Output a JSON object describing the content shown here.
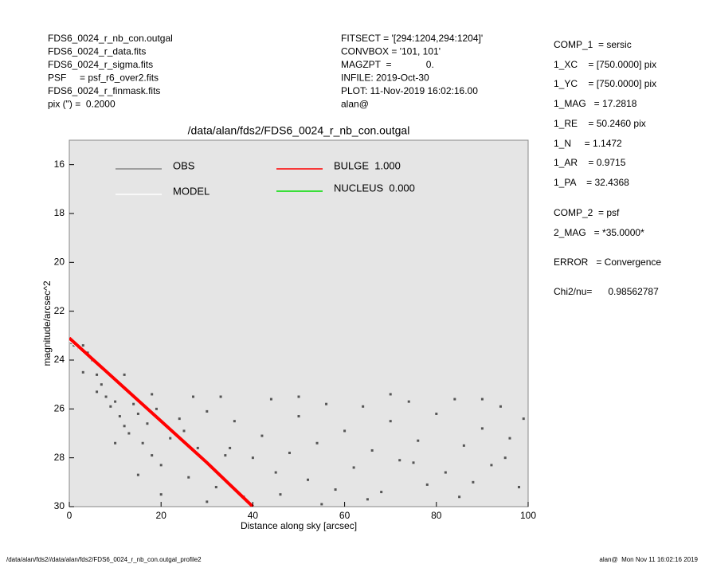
{
  "header_left": [
    "FDS6_0024_r_nb_con.outgal",
    "FDS6_0024_r_data.fits",
    "FDS6_0024_r_sigma.fits",
    "PSF     = psf_r6_over2.fits",
    "FDS6_0024_r_finmask.fits",
    "pix (\") =  0.2000"
  ],
  "header_middle": [
    "FITSECT = '[294:1204,294:1204]'",
    "CONVBOX = '101, 101'",
    "MAGZPT  =             0.",
    "INFILE: 2019-Oct-30",
    "PLOT: 11-Nov-2019 16:02:16.00",
    "alan@"
  ],
  "fit_parameters": [
    "COMP_1  = sersic",
    "1_XC    = [750.0000] pix",
    "1_YC    = [750.0000] pix",
    "1_MAG   = 17.2818",
    "1_RE    = 50.2460 pix",
    "1_N     = 1.1472",
    "1_AR    = 0.9715",
    "1_PA    = 32.4368",
    "COMP_2  = psf",
    "2_MAG   = *35.0000*",
    "ERROR   = Convergence",
    "Chi2/nu=      0.98562787"
  ],
  "footer": {
    "left": "/data/alan/fds2//data/alan/fds2/FDS6_0024_r_nb_con.outgal_profile2",
    "right": "alan@  Mon Nov 11 16:02:16 2019"
  },
  "chart_data": {
    "type": "scatter",
    "title": "/data/alan/fds2/FDS6_0024_r_nb_con.outgal",
    "xlabel": "Distance along sky [arcsec]",
    "ylabel": "magnitude/arcsec^2",
    "xlim": [
      0,
      100
    ],
    "ylim": [
      15,
      30
    ],
    "y_inverted": true,
    "xticks": [
      0,
      20,
      40,
      60,
      80,
      100
    ],
    "yticks": [
      16,
      18,
      20,
      22,
      24,
      26,
      28,
      30
    ],
    "series": [
      {
        "name": "OBS",
        "color": "#555555",
        "kind": "points",
        "x": [
          0.5,
          1,
          2,
          3,
          4,
          5,
          6,
          7,
          8,
          9,
          10,
          11,
          12,
          13,
          14,
          15,
          16,
          17,
          18,
          19,
          20,
          22,
          24,
          26,
          28,
          30,
          32,
          34,
          36,
          38,
          40,
          42,
          44,
          46,
          48,
          50,
          52,
          54,
          56,
          58,
          60,
          62,
          64,
          66,
          68,
          70,
          72,
          74,
          76,
          78,
          80,
          82,
          84,
          86,
          88,
          90,
          92,
          94,
          96,
          98,
          99,
          10,
          15,
          20,
          25,
          30,
          35,
          45,
          55,
          65,
          75,
          85,
          95,
          3,
          6,
          12,
          18,
          27,
          33,
          50,
          70,
          90
        ],
        "values": [
          23.3,
          23.4,
          23.5,
          23.4,
          23.7,
          24.0,
          24.6,
          25.0,
          25.5,
          25.9,
          25.7,
          26.3,
          26.7,
          27.0,
          25.8,
          26.2,
          27.4,
          26.6,
          27.9,
          26.0,
          28.3,
          27.2,
          26.4,
          28.8,
          27.6,
          26.1,
          29.2,
          27.9,
          26.5,
          29.6,
          28.0,
          27.1,
          25.6,
          29.5,
          27.8,
          26.3,
          28.9,
          27.4,
          25.8,
          29.3,
          26.9,
          28.4,
          25.9,
          27.7,
          29.4,
          26.5,
          28.1,
          25.7,
          27.3,
          29.1,
          26.2,
          28.6,
          25.6,
          27.5,
          29.0,
          26.8,
          28.3,
          25.9,
          27.2,
          29.2,
          26.4,
          27.4,
          28.7,
          29.5,
          26.9,
          29.8,
          27.6,
          28.6,
          29.9,
          29.7,
          28.2,
          29.6,
          28.0,
          24.5,
          25.3,
          24.6,
          25.4,
          25.5,
          25.5,
          25.5,
          25.4,
          25.6
        ]
      },
      {
        "name": "MODEL",
        "color": "#ffffff",
        "kind": "line",
        "x": [
          0,
          5,
          10,
          15,
          20,
          25,
          30,
          35,
          40
        ],
        "values": [
          23.2,
          24.0,
          24.85,
          25.7,
          26.55,
          27.4,
          28.25,
          29.1,
          30.0
        ]
      },
      {
        "name": "BULGE  1.000",
        "color": "#ff0000",
        "kind": "line",
        "x": [
          0,
          5,
          10,
          15,
          20,
          25,
          30,
          35,
          40
        ],
        "values": [
          23.1,
          23.95,
          24.8,
          25.65,
          26.5,
          27.35,
          28.2,
          29.1,
          30.0
        ]
      },
      {
        "name": "NUCLEUS  0.000",
        "color": "#00dd00",
        "kind": "line",
        "x": [],
        "values": []
      }
    ]
  }
}
